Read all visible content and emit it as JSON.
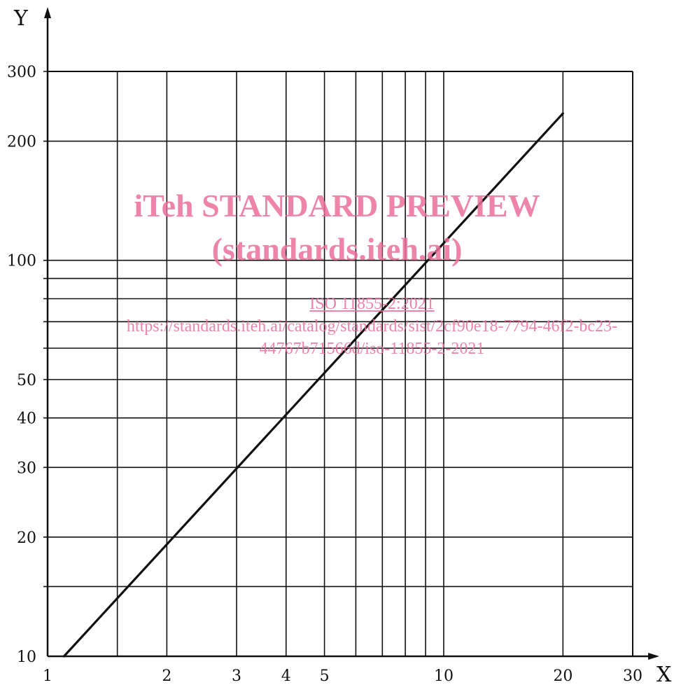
{
  "chart_data": {
    "type": "line",
    "title": "",
    "xlabel": "X",
    "ylabel": "Y",
    "x_scale": "log",
    "y_scale": "log",
    "xlim": [
      1,
      30
    ],
    "ylim": [
      10,
      300
    ],
    "x_ticks": [
      1,
      2,
      3,
      4,
      5,
      10,
      20,
      30
    ],
    "x_tick_labels": [
      "1",
      "2",
      "3",
      "4",
      "5",
      "10",
      "20",
      "30"
    ],
    "y_ticks": [
      10,
      20,
      30,
      40,
      50,
      100,
      200,
      300
    ],
    "y_tick_labels": [
      "10",
      "20",
      "30",
      "40",
      "50",
      "100",
      "200",
      "300"
    ],
    "x_gridlines": [
      1.5,
      2,
      3,
      4,
      5,
      6,
      7,
      8,
      9,
      10,
      20
    ],
    "y_gridlines": [
      15,
      20,
      30,
      40,
      50,
      60,
      70,
      80,
      90,
      100,
      200,
      300
    ],
    "grid": true,
    "legend": "none",
    "line_color": "#111111",
    "series": [
      {
        "x": [
          1.1,
          20
        ],
        "y": [
          10,
          235
        ]
      }
    ]
  },
  "watermark": {
    "line1": "iTeh STANDARD PREVIEW",
    "line2": "(standards.iteh.ai)",
    "line3": "ISO 11855-2:2021",
    "line4": "https://standards.iteh.ai/catalog/standards/sist/2cf90e18-7794-46f2-bc23-",
    "line5": "44767b71566d/iso-11855-2-2021",
    "color": "#ec6f9c"
  }
}
